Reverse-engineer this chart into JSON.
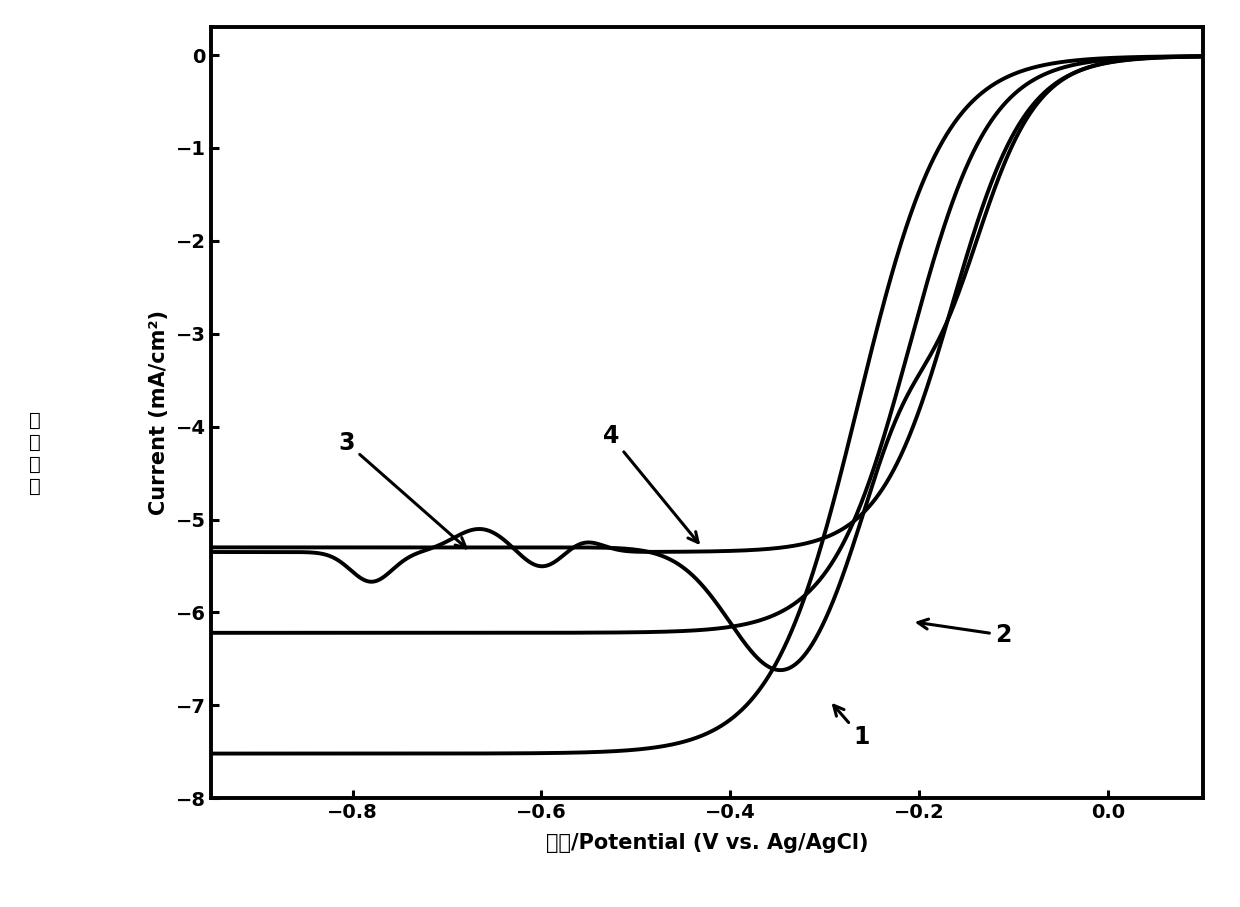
{
  "xlim": [
    -0.95,
    0.1
  ],
  "ylim": [
    -8,
    0.3
  ],
  "xticks": [
    -0.8,
    -0.6,
    -0.4,
    -0.2,
    0.0
  ],
  "yticks": [
    0,
    -1,
    -2,
    -3,
    -4,
    -5,
    -6,
    -7,
    -8
  ],
  "xlabel": "电压/Potential (V vs. Ag/AgCl)",
  "ylabel_en": "Current (mA/cm²)",
  "ylabel_cn": "电流\n密\n度",
  "line_color": "#000000",
  "background": "#ffffff",
  "label_fontsize": 15,
  "tick_fontsize": 14,
  "ann_fontsize": 17,
  "lw": 2.8
}
